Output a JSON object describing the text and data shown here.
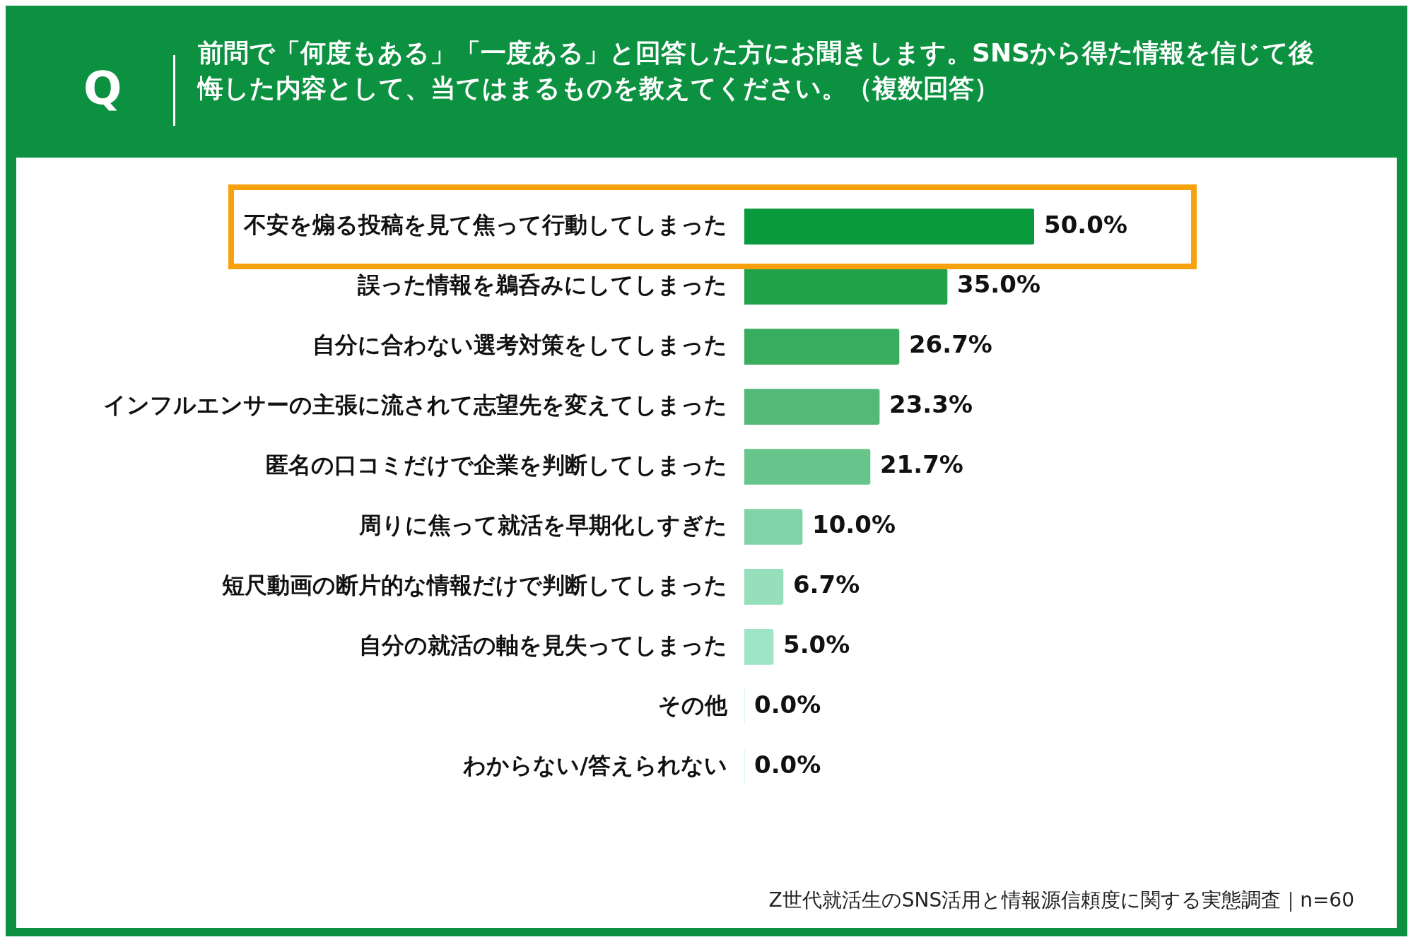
{
  "chart_data": {
    "type": "bar",
    "orientation": "horizontal",
    "title": "前問で「何度もある」「一度ある」と回答した方にお聞きします。SNSから得た情報を信じて後悔した内容として、当てはまるものを教えてください。（複数回答）",
    "categories": [
      "不安を煽る投稿を見て焦って行動してしまった",
      "誤った情報を鵜呑みにしてしまった",
      "自分に合わない選考対策をしてしまった",
      "インフルエンサーの主張に流されて志望先を変えてしまった",
      "匿名の口コミだけで企業を判断してしまった",
      "周りに焦って就活を早期化しすぎた",
      "短尺動画の断片的な情報だけで判断してしまった",
      "自分の就活の軸を見失ってしまった",
      "その他",
      "わからない/答えられない"
    ],
    "values": [
      50.0,
      35.0,
      26.7,
      23.3,
      21.7,
      10.0,
      6.7,
      5.0,
      0.0,
      0.0
    ],
    "value_labels": [
      "50.0%",
      "35.0%",
      "26.7%",
      "23.3%",
      "21.7%",
      "10.0%",
      "6.7%",
      "5.0%",
      "0.0%",
      "0.0%"
    ],
    "colors": [
      "#089a3c",
      "#22a24a",
      "#38ad5e",
      "#52b978",
      "#67c58c",
      "#80d3a8",
      "#95e0bb",
      "#9de5c4",
      "#9de5c4",
      "#9de5c4"
    ],
    "grid": false,
    "legend": false,
    "annotations": [
      "Q",
      "Z世代就活生のSNS活用と情報源信頼度に関する実態調査｜n=60"
    ]
  }
}
